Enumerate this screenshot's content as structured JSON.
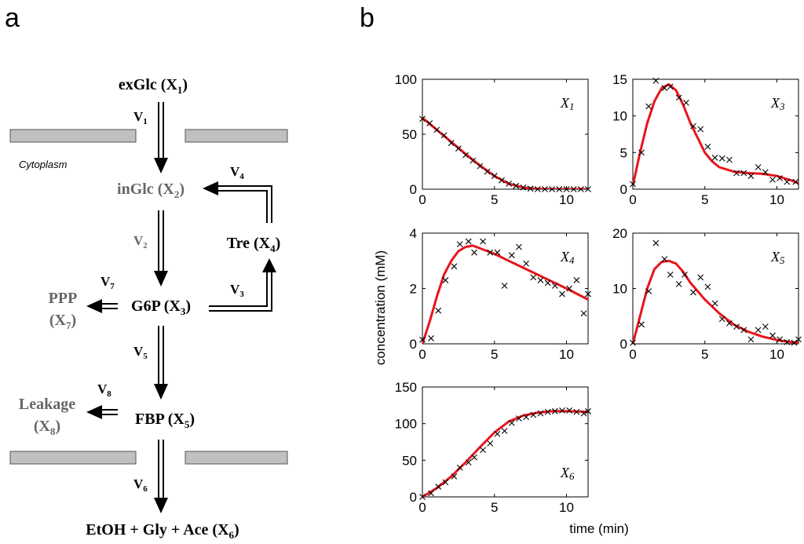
{
  "panel_a": {
    "label": "a",
    "cytoplasm_label": "Cytoplasm",
    "nodes": {
      "x1": {
        "name": "exGlc",
        "var": "X",
        "sub": "1"
      },
      "x2": {
        "name": "inGlc",
        "var": "X",
        "sub": "2"
      },
      "x3": {
        "name": "G6P",
        "var": "X",
        "sub": "3"
      },
      "x4": {
        "name": "Tre",
        "var": "X",
        "sub": "4"
      },
      "x5": {
        "name": "FBP",
        "var": "X",
        "sub": "5"
      },
      "x6": {
        "name": "EtOH + Gly + Ace",
        "var": "X",
        "sub": "6"
      },
      "x7": {
        "name": "PPP",
        "var": "X",
        "sub": "7"
      },
      "x8": {
        "name": "Leakage",
        "var": "X",
        "sub": "8"
      }
    },
    "rates": {
      "v1": {
        "v": "V",
        "sub": "1"
      },
      "v2": {
        "v": "V",
        "sub": "2"
      },
      "v3": {
        "v": "V",
        "sub": "3"
      },
      "v4": {
        "v": "V",
        "sub": "4"
      },
      "v5": {
        "v": "V",
        "sub": "5"
      },
      "v6": {
        "v": "V",
        "sub": "6"
      },
      "v7": {
        "v": "V",
        "sub": "7"
      },
      "v8": {
        "v": "V",
        "sub": "8"
      }
    },
    "colors": {
      "primary": "#000000",
      "secondary": "#666666",
      "membrane": "#c0c0c0"
    }
  },
  "panel_b": {
    "label": "b",
    "ylabel": "concentration (mM)",
    "xlabel": "time (min)",
    "colors": {
      "fit_line": "#e8141c",
      "markers": "#000000"
    }
  },
  "chart_data": [
    {
      "type": "scatter",
      "series_label": "X1",
      "xlim": [
        0,
        11.5
      ],
      "ylim": [
        0,
        100
      ],
      "xticks": [
        "0",
        "5",
        "10"
      ],
      "xtick_values": [
        0,
        5,
        10
      ],
      "yticks": [
        "0",
        "50",
        "100"
      ],
      "ytick_values": [
        0,
        50,
        100
      ],
      "series": [
        {
          "name": "model",
          "kind": "line",
          "x": [
            0,
            1,
            2,
            3,
            4,
            5,
            6,
            7,
            8,
            9,
            10,
            11.5
          ],
          "y": [
            65,
            54,
            43,
            32,
            21.5,
            12,
            5,
            1.5,
            0.3,
            0,
            0,
            0
          ]
        },
        {
          "name": "data",
          "kind": "markers",
          "x": [
            0,
            0.5,
            1,
            1.5,
            2,
            2.5,
            3,
            3.5,
            4,
            4.5,
            5,
            5.5,
            6,
            6.5,
            7,
            7.5,
            8,
            8.5,
            9,
            9.5,
            10,
            10.5,
            11,
            11.5
          ],
          "y": [
            64,
            60,
            54,
            49,
            42,
            37,
            31,
            26,
            21,
            16,
            12,
            8,
            5,
            3,
            1.5,
            0.5,
            0,
            0,
            0,
            0,
            0,
            0,
            0,
            0
          ]
        }
      ]
    },
    {
      "type": "scatter",
      "series_label": "X3",
      "xlim": [
        0,
        11.5
      ],
      "ylim": [
        0,
        15
      ],
      "xticks": [
        "0",
        "5",
        "10"
      ],
      "xtick_values": [
        0,
        5,
        10
      ],
      "yticks": [
        "0",
        "5",
        "10",
        "15"
      ],
      "ytick_values": [
        0,
        5,
        10,
        15
      ],
      "series": [
        {
          "name": "model",
          "kind": "line",
          "x": [
            0,
            0.5,
            1,
            1.5,
            2,
            2.5,
            3,
            3.5,
            4,
            4.5,
            5,
            5.5,
            6,
            7,
            8,
            9,
            10,
            10.5,
            11,
            11.5
          ],
          "y": [
            0.5,
            5,
            9,
            12,
            13.8,
            14.3,
            13.5,
            11.5,
            9,
            7,
            5,
            3.8,
            3,
            2.4,
            2.2,
            2.1,
            1.8,
            1.5,
            1.2,
            0.8
          ]
        },
        {
          "name": "data",
          "kind": "markers",
          "x": [
            0,
            0.6,
            1.1,
            1.6,
            2.2,
            2.6,
            3.2,
            3.7,
            4.2,
            4.7,
            5.2,
            5.7,
            6.2,
            6.7,
            7.2,
            7.7,
            8.2,
            8.7,
            9.2,
            9.7,
            10.2,
            10.7,
            11.3
          ],
          "y": [
            0.7,
            5,
            11.3,
            14.8,
            13.8,
            14,
            12.5,
            11.8,
            8.6,
            8.2,
            5.8,
            4.3,
            4.2,
            4,
            2.2,
            2.2,
            1.8,
            3,
            2.3,
            1.3,
            1.5,
            1,
            1
          ]
        }
      ]
    },
    {
      "type": "scatter",
      "series_label": "X4",
      "xlim": [
        0,
        11.5
      ],
      "ylim": [
        0,
        4
      ],
      "xticks": [
        "0",
        "5",
        "10"
      ],
      "xtick_values": [
        0,
        5,
        10
      ],
      "yticks": [
        "0",
        "2",
        "4"
      ],
      "ytick_values": [
        0,
        2,
        4
      ],
      "series": [
        {
          "name": "model",
          "kind": "line",
          "x": [
            0,
            0.5,
            1,
            1.5,
            2,
            2.5,
            3,
            3.5,
            4,
            5,
            6,
            7,
            8,
            9,
            10,
            11.5
          ],
          "y": [
            0,
            0.8,
            1.7,
            2.5,
            3.0,
            3.35,
            3.5,
            3.55,
            3.45,
            3.25,
            3.0,
            2.75,
            2.5,
            2.25,
            2.0,
            1.6
          ]
        },
        {
          "name": "data",
          "kind": "markers",
          "x": [
            0,
            0.6,
            1.1,
            1.6,
            2.2,
            2.6,
            3.2,
            3.6,
            4.2,
            4.7,
            5.2,
            5.7,
            6.2,
            6.7,
            7.2,
            7.7,
            8.2,
            8.7,
            9.2,
            9.7,
            10.2,
            10.7,
            11.2,
            11.5
          ],
          "y": [
            0.15,
            0.2,
            1.2,
            2.3,
            2.8,
            3.6,
            3.7,
            3.3,
            3.7,
            3.3,
            3.3,
            2.1,
            3.2,
            3.5,
            2.9,
            2.4,
            2.3,
            2.2,
            2.1,
            1.8,
            2.0,
            2.3,
            1.1,
            1.8
          ]
        }
      ]
    },
    {
      "type": "scatter",
      "series_label": "X5",
      "xlim": [
        0,
        11.5
      ],
      "ylim": [
        0,
        20
      ],
      "xticks": [
        "0",
        "5",
        "10"
      ],
      "xtick_values": [
        0,
        5,
        10
      ],
      "yticks": [
        "0",
        "10",
        "20"
      ],
      "ytick_values": [
        0,
        10,
        20
      ],
      "series": [
        {
          "name": "model",
          "kind": "line",
          "x": [
            0,
            0.5,
            1,
            1.5,
            2,
            2.5,
            3,
            3.5,
            4,
            4.5,
            5,
            6,
            7,
            8,
            9,
            10,
            11,
            11.5
          ],
          "y": [
            0,
            5,
            10,
            13.5,
            14.8,
            15,
            14.5,
            13,
            11,
            9.5,
            8,
            5.5,
            3.5,
            2.2,
            1.3,
            0.7,
            0.3,
            0.2
          ]
        },
        {
          "name": "data",
          "kind": "markers",
          "x": [
            0,
            0.6,
            1.1,
            1.6,
            2.2,
            2.6,
            3.2,
            3.6,
            4.2,
            4.7,
            5.2,
            5.7,
            6.2,
            6.7,
            7.2,
            7.7,
            8.2,
            8.7,
            9.2,
            9.7,
            10.2,
            10.7,
            11.2,
            11.5
          ],
          "y": [
            0.2,
            3.5,
            9.5,
            18.2,
            15.3,
            12.5,
            10.8,
            12.5,
            9.3,
            12,
            10.3,
            7.3,
            4.5,
            3.7,
            3.1,
            2.5,
            0.8,
            2.5,
            3.1,
            1.5,
            0.8,
            0.3,
            0.2,
            0.8
          ]
        }
      ]
    },
    {
      "type": "scatter",
      "series_label": "X6",
      "xlim": [
        0,
        11.5
      ],
      "ylim": [
        0,
        150
      ],
      "xticks": [
        "0",
        "5",
        "10"
      ],
      "xtick_values": [
        0,
        5,
        10
      ],
      "yticks": [
        "0",
        "50",
        "100",
        "150"
      ],
      "ytick_values": [
        0,
        50,
        100,
        150
      ],
      "series": [
        {
          "name": "model",
          "kind": "line",
          "x": [
            0,
            1,
            2,
            3,
            4,
            5,
            6,
            7,
            8,
            9,
            10,
            11.5
          ],
          "y": [
            0,
            12,
            28,
            47,
            68,
            88,
            103,
            111,
            115,
            117,
            117,
            116
          ]
        },
        {
          "name": "data",
          "kind": "markers",
          "x": [
            0,
            0.6,
            1.1,
            1.6,
            2.2,
            2.6,
            3.2,
            3.6,
            4.2,
            4.7,
            5.2,
            5.7,
            6.2,
            6.7,
            7.2,
            7.7,
            8.2,
            8.7,
            9.2,
            9.7,
            10.2,
            10.7,
            11.2,
            11.5
          ],
          "y": [
            0,
            5,
            14,
            20,
            28,
            40,
            47,
            54,
            64,
            73,
            86,
            90,
            101,
            107,
            109,
            112,
            114,
            116,
            117,
            118,
            118,
            116,
            114,
            117
          ]
        }
      ]
    }
  ]
}
